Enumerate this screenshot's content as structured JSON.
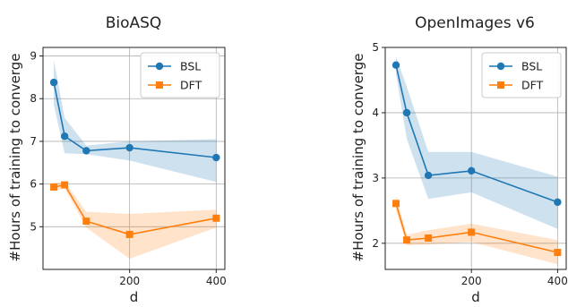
{
  "chart_data": [
    {
      "type": "line",
      "title": "BioASQ",
      "xlabel": "d",
      "ylabel": "#Hours of training to converge",
      "xlim": [
        0,
        420
      ],
      "ylim": [
        4,
        9.2
      ],
      "xticks": [
        200,
        400
      ],
      "yticks": [
        5,
        6,
        7,
        8,
        9
      ],
      "grid": true,
      "legend": "top-right",
      "series": [
        {
          "name": "BSL",
          "color": "#1f77b4",
          "marker": "circle",
          "x": [
            25,
            50,
            100,
            200,
            400
          ],
          "y": [
            8.38,
            7.12,
            6.78,
            6.85,
            6.62
          ],
          "lower": [
            7.85,
            6.72,
            6.7,
            6.55,
            6.05
          ],
          "upper": [
            8.9,
            7.55,
            6.9,
            7.0,
            7.05
          ]
        },
        {
          "name": "DFT",
          "color": "#ff7f0e",
          "marker": "square",
          "x": [
            25,
            50,
            100,
            200,
            400
          ],
          "y": [
            5.93,
            5.98,
            5.13,
            4.82,
            5.2
          ],
          "lower": [
            5.83,
            5.9,
            4.98,
            4.25,
            4.98
          ],
          "upper": [
            6.03,
            6.05,
            5.35,
            5.3,
            5.4
          ]
        }
      ]
    },
    {
      "type": "line",
      "title": "OpenImages v6",
      "xlabel": "d",
      "ylabel": "#Hours of training to converge",
      "xlim": [
        0,
        420
      ],
      "ylim": [
        1.6,
        5.0
      ],
      "xticks": [
        200,
        400
      ],
      "yticks": [
        2,
        3,
        4,
        5
      ],
      "grid": true,
      "legend": "top-right",
      "series": [
        {
          "name": "BSL",
          "color": "#1f77b4",
          "marker": "circle",
          "x": [
            25,
            50,
            100,
            200,
            400
          ],
          "y": [
            4.73,
            4.0,
            3.04,
            3.11,
            2.63
          ],
          "lower": [
            4.6,
            3.6,
            2.68,
            2.78,
            2.22
          ],
          "upper": [
            4.86,
            4.4,
            3.4,
            3.4,
            3.02
          ]
        },
        {
          "name": "DFT",
          "color": "#ff7f0e",
          "marker": "square",
          "x": [
            25,
            50,
            100,
            200,
            400
          ],
          "y": [
            2.61,
            2.05,
            2.08,
            2.17,
            1.86
          ],
          "lower": [
            2.5,
            1.97,
            1.98,
            2.02,
            1.68
          ],
          "upper": [
            2.72,
            2.13,
            2.2,
            2.3,
            2.05
          ]
        }
      ]
    }
  ]
}
